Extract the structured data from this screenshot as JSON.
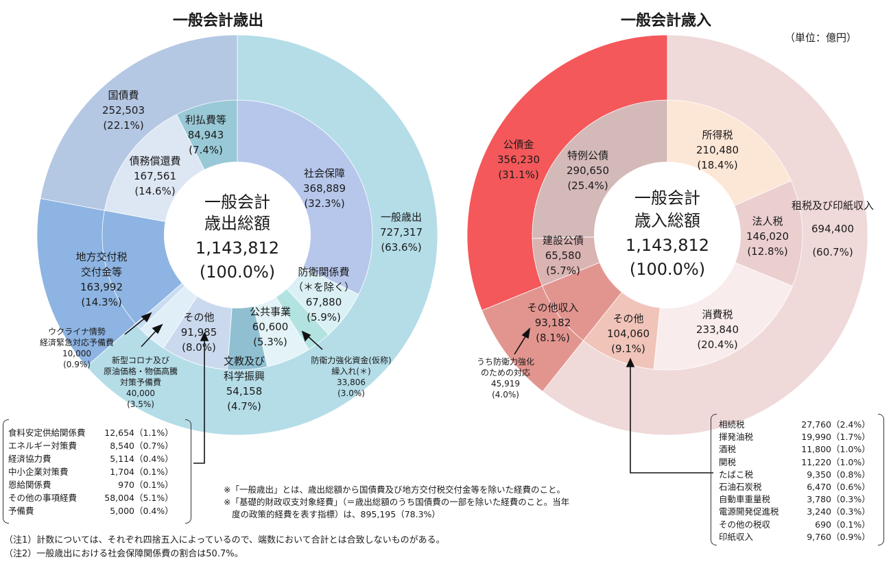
{
  "titles": {
    "left": "一般会計歳出",
    "right": "一般会計歳入",
    "unit": "（単位：億円）"
  },
  "chart_data": [
    {
      "type": "pie",
      "title": "一般会計歳出",
      "center": {
        "line1": "一般会計",
        "line2": "歳出総額",
        "value": "1,143,812",
        "pct": "(100.0%)"
      },
      "outer": [
        {
          "label": "一般歳出",
          "value": 727317,
          "pct": "63.6%",
          "color": "#b4dde8"
        },
        {
          "label": "地方交付税交付金等",
          "value": 163992,
          "pct": "14.3%",
          "color": "#8db4e2"
        },
        {
          "label": "国債費",
          "value": 252503,
          "pct": "22.1%",
          "color": "#b4c7e3"
        }
      ],
      "inner": [
        {
          "label": "社会保障",
          "value": 368889,
          "pct": "32.3%",
          "color": "#b7c7eb"
        },
        {
          "label": "防衛関係費（＊を除く）",
          "value": 67880,
          "pct": "5.9%",
          "color": "#daf0f4"
        },
        {
          "label": "防衛力強化資金(仮称)繰入れ(＊)",
          "value": 33806,
          "pct": "3.0%",
          "color": "#b3e3e1"
        },
        {
          "label": "公共事業",
          "value": 60600,
          "pct": "5.3%",
          "color": "#e3f3f7"
        },
        {
          "label": "文教及び科学振興",
          "value": 54158,
          "pct": "4.7%",
          "color": "#8fbfd1"
        },
        {
          "label": "その他",
          "value": 91985,
          "pct": "8.0%",
          "color": "#cbd9ee"
        },
        {
          "label": "新型コロナ及び原油価格・物価高騰対策予備費",
          "value": 40000,
          "pct": "3.5%",
          "color": "#e0eef8"
        },
        {
          "label": "ウクライナ情勢経済緊急対応予備費",
          "value": 10000,
          "pct": "0.9%",
          "color": "#c8dcf2"
        },
        {
          "label": "地方交付税交付金等",
          "value": 163992,
          "pct": "14.3%",
          "color": "#8db4e2"
        },
        {
          "label": "債務償還費",
          "value": 167561,
          "pct": "14.6%",
          "color": "#dde6f3"
        },
        {
          "label": "利払費等",
          "value": 84943,
          "pct": "7.4%",
          "color": "#99c9d6"
        }
      ],
      "others_breakdown": [
        {
          "label": "食料安定供給関係費",
          "value": "12,654",
          "pct": "（1.1%）"
        },
        {
          "label": "エネルギー対策費",
          "value": "8,540",
          "pct": "（0.7%）"
        },
        {
          "label": "経済協力費",
          "value": "5,114",
          "pct": "（0.4%）"
        },
        {
          "label": "中小企業対策費",
          "value": "1,704",
          "pct": "（0.1%）"
        },
        {
          "label": "恩給関係費",
          "value": "970",
          "pct": "（0.1%）"
        },
        {
          "label": "その他の事項経費",
          "value": "58,004",
          "pct": "（5.1%）"
        },
        {
          "label": "予備費",
          "value": "5,000",
          "pct": "（0.4%）"
        }
      ]
    },
    {
      "type": "pie",
      "title": "一般会計歳入",
      "center": {
        "line1": "一般会計",
        "line2": "歳入総額",
        "value": "1,143,812",
        "pct": "(100.0%)"
      },
      "outer": [
        {
          "label": "租税及び印紙収入",
          "value": 694400,
          "pct": "60.7%",
          "color": "#f0d9d9"
        },
        {
          "label": "その他収入",
          "value": 93182,
          "pct": "8.1%",
          "color": "#e2958f"
        },
        {
          "label": "公債金",
          "value": 356230,
          "pct": "31.1%",
          "color": "#f4585a"
        }
      ],
      "inner": [
        {
          "label": "所得税",
          "value": 210480,
          "pct": "18.4%",
          "color": "#fce6d6"
        },
        {
          "label": "法人税",
          "value": 146020,
          "pct": "12.8%",
          "color": "#ebcfcf"
        },
        {
          "label": "消費税",
          "value": 233840,
          "pct": "20.4%",
          "color": "#f9ecec"
        },
        {
          "label": "その他",
          "value": 104060,
          "pct": "9.1%",
          "color": "#f1c4b9"
        },
        {
          "label": "その他収入",
          "value": 93182,
          "pct": "8.1%",
          "color": "#e2958f"
        },
        {
          "label": "建設公債",
          "value": 65580,
          "pct": "5.7%",
          "color": "#dab3b3"
        },
        {
          "label": "特例公債",
          "value": 290650,
          "pct": "25.4%",
          "color": "#d4b9b9"
        }
      ],
      "others_breakdown": [
        {
          "label": "相続税",
          "value": "27,760",
          "pct": "（2.4%）"
        },
        {
          "label": "揮発油税",
          "value": "19,990",
          "pct": "（1.7%）"
        },
        {
          "label": "酒税",
          "value": "11,800",
          "pct": "（1.0%）"
        },
        {
          "label": "関税",
          "value": "11,220",
          "pct": "（1.0%）"
        },
        {
          "label": "たばこ税",
          "value": "9,350",
          "pct": "（0.8%）"
        },
        {
          "label": "石油石炭税",
          "value": "6,470",
          "pct": "（0.6%）"
        },
        {
          "label": "自動車重量税",
          "value": "3,780",
          "pct": "（0.3%）"
        },
        {
          "label": "電源開発促進税",
          "value": "3,240",
          "pct": "（0.3%）"
        },
        {
          "label": "その他の税収",
          "value": "690",
          "pct": "（0.1%）"
        },
        {
          "label": "印紙収入",
          "value": "9,760",
          "pct": "（0.9%）"
        }
      ],
      "sub_annotation": {
        "label": "うち防衛力強化のための対応",
        "value": "45,919",
        "pct": "(4.0%)"
      }
    }
  ],
  "labels": {
    "left": {
      "kokusaihi": [
        "国債費",
        "252,503",
        "(22.1%)"
      ],
      "saimu": [
        "債務償還費",
        "167,561",
        "(14.6%)"
      ],
      "riharai": [
        "利払費等",
        "84,943",
        "(7.4%)"
      ],
      "shakai": [
        "社会保障",
        "368,889",
        "(32.3%)"
      ],
      "ippan": [
        "一般歳出",
        "727,317",
        "(63.6%)"
      ],
      "bouei": [
        "防衛関係費",
        "（＊を除く）",
        "67,880",
        "(5.9%)"
      ],
      "koukyo": [
        "公共事業",
        "60,600",
        "(5.3%)"
      ],
      "bunkyo": [
        "文教及び",
        "科学振興",
        "54,158",
        "(4.7%)"
      ],
      "sonota": [
        "その他",
        "91,985",
        "(8.0%)"
      ],
      "chihou": [
        "地方交付税",
        "交付金等",
        "163,992",
        "(14.3%)"
      ],
      "ukraine": [
        "ウクライナ情勢",
        "経済緊急対応予備費",
        "10,000",
        "(0.9%)"
      ],
      "corona": [
        "新型コロナ及び",
        "原油価格・物価高騰",
        "対策予備費",
        "40,000",
        "(3.5%)"
      ],
      "boueishikin": [
        "防衛力強化資金(仮称)",
        "繰入れ(＊)",
        "33,806",
        "(3.0%)"
      ]
    },
    "right": {
      "koseikin": [
        "公債金",
        "356,230",
        "(31.1%)"
      ],
      "tokurei": [
        "特例公債",
        "290,650",
        "(25.4%)"
      ],
      "shotoku": [
        "所得税",
        "210,480",
        "(18.4%)"
      ],
      "sozei": [
        "租税及び印紙収入",
        "694,400",
        "(60.7%)"
      ],
      "houjin": [
        "法人税",
        "146,020",
        "(12.8%)"
      ],
      "kensetsu": [
        "建設公債",
        "65,580",
        "(5.7%)"
      ],
      "shouhi": [
        "消費税",
        "233,840",
        "(20.4%)"
      ],
      "sonota": [
        "その他",
        "104,060",
        "(9.1%)"
      ],
      "sonotashunyu": [
        "その他収入",
        "93,182",
        "(8.1%)"
      ],
      "boueitaiou": [
        "うち防衛力強化",
        "のための対応",
        "45,919",
        "(4.0%)"
      ]
    }
  },
  "notes": {
    "star1": "※「一般歳出」とは、歳出総額から国債費及び地方交付税交付金等を除いた経費のこと。",
    "star2a": "※「基礎的財政収支対象経費」（＝歳出総額のうち国債費の一部を除いた経費のこと。当年",
    "star2b": "度の政策的経費を表す指標）は、895,195（78.3%）",
    "note1": "（注1）計数については、それぞれ四捨五入によっているので、端数において合計とは合致しないものがある。",
    "note2": "（注2）一般歳出における社会保障関係費の割合は50.7%。"
  }
}
